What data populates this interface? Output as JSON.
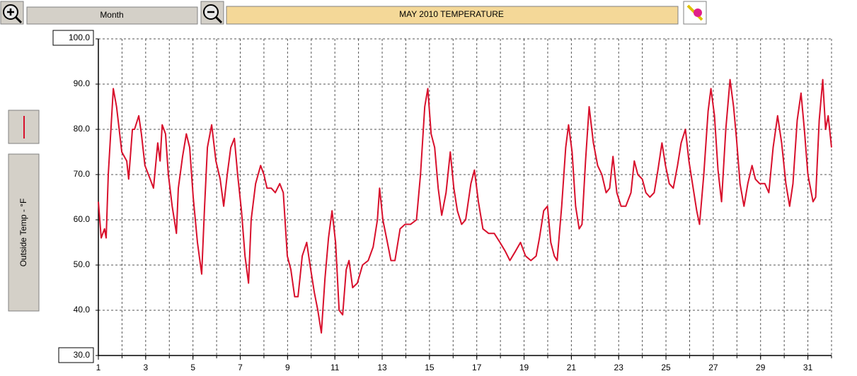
{
  "toolbar": {
    "period": "Month"
  },
  "chart_data": {
    "type": "line",
    "title": "MAY  2010   TEMPERATURE",
    "xlim": [
      1,
      32
    ],
    "xticks": [
      1,
      3,
      5,
      7,
      9,
      11,
      13,
      15,
      17,
      19,
      21,
      23,
      25,
      27,
      29,
      31
    ],
    "xgrid": [
      2,
      3,
      4,
      5,
      6,
      7,
      8,
      9,
      10,
      11,
      12,
      13,
      14,
      15,
      16,
      17,
      18,
      19,
      20,
      21,
      22,
      23,
      24,
      25,
      26,
      27,
      28,
      29,
      30,
      31,
      32
    ],
    "ylim": [
      30,
      100
    ],
    "yticks": [
      {
        "value": 30,
        "label": "30.0"
      },
      {
        "value": 40,
        "label": "40.0"
      },
      {
        "value": 50,
        "label": "50.0"
      },
      {
        "value": 60,
        "label": "60.0"
      },
      {
        "value": 70,
        "label": "70.0"
      },
      {
        "value": 80,
        "label": "80.0"
      },
      {
        "value": 90,
        "label": "90.0"
      },
      {
        "value": 100,
        "label": "100.0"
      }
    ],
    "grid": true,
    "x": [
      1.0,
      1.12,
      1.26,
      1.33,
      1.42,
      1.63,
      1.77,
      1.99,
      2.2,
      2.28,
      2.44,
      2.53,
      2.71,
      2.82,
      2.97,
      3.19,
      3.33,
      3.51,
      3.61,
      3.7,
      3.84,
      3.96,
      4.12,
      4.3,
      4.38,
      4.56,
      4.72,
      4.86,
      5.01,
      5.19,
      5.37,
      5.49,
      5.61,
      5.79,
      5.97,
      6.15,
      6.3,
      6.45,
      6.6,
      6.75,
      6.89,
      7.05,
      7.2,
      7.35,
      7.46,
      7.65,
      7.86,
      8.0,
      8.13,
      8.31,
      8.48,
      8.67,
      8.82,
      8.99,
      9.14,
      9.3,
      9.44,
      9.62,
      9.81,
      9.95,
      10.13,
      10.28,
      10.43,
      10.58,
      10.73,
      10.88,
      11.03,
      11.18,
      11.33,
      11.48,
      11.6,
      11.75,
      11.95,
      12.17,
      12.41,
      12.62,
      12.8,
      12.89,
      13.03,
      13.22,
      13.37,
      13.54,
      13.76,
      13.97,
      14.2,
      14.45,
      14.62,
      14.8,
      14.93,
      15.07,
      15.22,
      15.37,
      15.52,
      15.7,
      15.88,
      16.03,
      16.18,
      16.36,
      16.53,
      16.75,
      16.9,
      17.07,
      17.26,
      17.5,
      17.74,
      17.98,
      18.21,
      18.4,
      18.63,
      18.85,
      19.06,
      19.29,
      19.51,
      19.65,
      19.83,
      19.99,
      20.13,
      20.28,
      20.4,
      20.59,
      20.76,
      20.88,
      21.03,
      21.18,
      21.33,
      21.45,
      21.6,
      21.75,
      21.93,
      22.11,
      22.29,
      22.47,
      22.62,
      22.76,
      22.92,
      23.1,
      23.3,
      23.52,
      23.66,
      23.81,
      24.0,
      24.15,
      24.32,
      24.5,
      24.66,
      24.83,
      24.98,
      25.14,
      25.31,
      25.49,
      25.64,
      25.82,
      25.97,
      26.12,
      26.3,
      26.42,
      26.6,
      26.78,
      26.9,
      27.05,
      27.2,
      27.35,
      27.53,
      27.71,
      27.86,
      27.98,
      28.13,
      28.3,
      28.46,
      28.64,
      28.78,
      28.96,
      29.18,
      29.35,
      29.53,
      29.72,
      29.89,
      30.07,
      30.23,
      30.37,
      30.55,
      30.71,
      30.85,
      31.0,
      31.22,
      31.33,
      31.48,
      31.63,
      31.75,
      31.86,
      32.0
    ],
    "series": [
      {
        "name": "Outside Temp - °F",
        "color": "#d8102c",
        "values": [
          64,
          56,
          58,
          56,
          70,
          89,
          85,
          75,
          73,
          69,
          80,
          80,
          83,
          79,
          72,
          69,
          67,
          77,
          73,
          81,
          79,
          70,
          63,
          57,
          67,
          74,
          79,
          76,
          65,
          55,
          48,
          63,
          76,
          81,
          73,
          69,
          63,
          70,
          76,
          78,
          70,
          62,
          52,
          46,
          60,
          68,
          72,
          70,
          67,
          67,
          66,
          68,
          66,
          52,
          49,
          43,
          43,
          52,
          55,
          50,
          44,
          40,
          35,
          47,
          56,
          62,
          55,
          40,
          39,
          49,
          51,
          45,
          46,
          50,
          51,
          54,
          60,
          67,
          60,
          55,
          51,
          51,
          58,
          59,
          59,
          60,
          70,
          85,
          89,
          79,
          76,
          67,
          61,
          66,
          75,
          67,
          62,
          59,
          60,
          68,
          71,
          64,
          58,
          57,
          57,
          55,
          53,
          51,
          53,
          55,
          52,
          51,
          52,
          56,
          62,
          63,
          55,
          52,
          51,
          63,
          76,
          81,
          75,
          63,
          58,
          59,
          73,
          85,
          77,
          72,
          70,
          66,
          67,
          74,
          66,
          63,
          63,
          66,
          73,
          70,
          69,
          66,
          65,
          66,
          71,
          77,
          72,
          68,
          67,
          72,
          77,
          80,
          73,
          68,
          62,
          59,
          70,
          84,
          89,
          83,
          71,
          64,
          80,
          91,
          85,
          78,
          68,
          63,
          68,
          72,
          69,
          68,
          68,
          66,
          76,
          83,
          77,
          68,
          63,
          68,
          82,
          88,
          80,
          70,
          64,
          65,
          82,
          91,
          80,
          83,
          76
        ]
      }
    ]
  }
}
